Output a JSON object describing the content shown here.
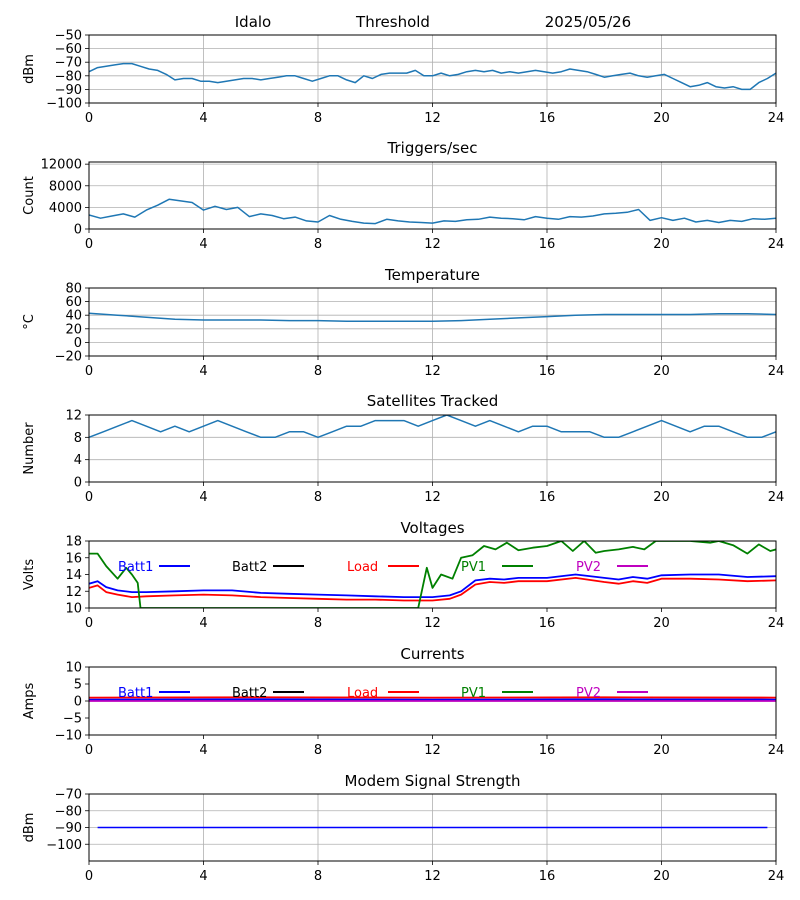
{
  "header": {
    "station": "Idalo",
    "mode": "Threshold",
    "date": "2025/05/26"
  },
  "colors": {
    "trace": "#1f77b4",
    "grid": "#b0b0b0",
    "batt1": "#0000ff",
    "batt2": "#000000",
    "load": "#ff0000",
    "pv1": "#008000",
    "pv2": "#bf00bf"
  },
  "legend_labels": [
    "Batt1",
    "Batt2",
    "Load",
    "PV1",
    "PV2"
  ],
  "x_ticks": [
    "0",
    "4",
    "8",
    "12",
    "16",
    "20",
    "24"
  ],
  "chart_data": [
    {
      "type": "line",
      "title": "",
      "ylabel": "dBm",
      "xlim": [
        0,
        24
      ],
      "ylim": [
        -100,
        -50
      ],
      "yticks": [
        -100,
        -90,
        -80,
        -70,
        -60,
        -50
      ],
      "grid": true,
      "series": [
        {
          "color": "#1f77b4",
          "x": [
            0,
            0.3,
            0.6,
            0.9,
            1.2,
            1.5,
            1.8,
            2.1,
            2.4,
            2.7,
            3,
            3.3,
            3.6,
            3.9,
            4.2,
            4.5,
            4.8,
            5.1,
            5.4,
            5.7,
            6,
            6.3,
            6.6,
            6.9,
            7.2,
            7.5,
            7.8,
            8.1,
            8.4,
            8.7,
            9,
            9.3,
            9.6,
            9.9,
            10.2,
            10.5,
            10.8,
            11.1,
            11.4,
            11.7,
            12,
            12.3,
            12.6,
            12.9,
            13.2,
            13.5,
            13.8,
            14.1,
            14.4,
            14.7,
            15,
            15.3,
            15.6,
            15.9,
            16.2,
            16.5,
            16.8,
            17.1,
            17.4,
            17.7,
            18,
            18.3,
            18.6,
            18.9,
            19.2,
            19.5,
            19.8,
            20.1,
            20.4,
            20.7,
            21,
            21.3,
            21.6,
            21.9,
            22.2,
            22.5,
            22.8,
            23.1,
            23.4,
            23.7,
            24
          ],
          "y": [
            -77,
            -74,
            -73,
            -72,
            -71,
            -71,
            -73,
            -75,
            -76,
            -79,
            -83,
            -82,
            -82,
            -84,
            -84,
            -85,
            -84,
            -83,
            -82,
            -82,
            -83,
            -82,
            -81,
            -80,
            -80,
            -82,
            -84,
            -82,
            -80,
            -80,
            -83,
            -85,
            -80,
            -82,
            -79,
            -78,
            -78,
            -78,
            -76,
            -80,
            -80,
            -78,
            -80,
            -79,
            -77,
            -76,
            -77,
            -76,
            -78,
            -77,
            -78,
            -77,
            -76,
            -77,
            -78,
            -77,
            -75,
            -76,
            -77,
            -79,
            -81,
            -80,
            -79,
            -78,
            -80,
            -81,
            -80,
            -79,
            -82,
            -85,
            -88,
            -87,
            -85,
            -88,
            -89,
            -88,
            -90,
            -90,
            -85,
            -82,
            -78
          ]
        }
      ]
    },
    {
      "type": "line",
      "title": "Triggers/sec",
      "ylabel": "Count",
      "xlim": [
        0,
        24
      ],
      "ylim": [
        0,
        12400
      ],
      "yticks": [
        0,
        4000,
        8000,
        12000
      ],
      "grid": true,
      "series": [
        {
          "color": "#1f77b4",
          "x": [
            0,
            0.4,
            0.8,
            1.2,
            1.6,
            2,
            2.4,
            2.8,
            3.2,
            3.6,
            4,
            4.4,
            4.8,
            5.2,
            5.6,
            6,
            6.4,
            6.8,
            7.2,
            7.6,
            8,
            8.4,
            8.8,
            9.2,
            9.6,
            10,
            10.4,
            10.8,
            11.2,
            11.6,
            12,
            12.4,
            12.8,
            13.2,
            13.6,
            14,
            14.4,
            14.8,
            15.2,
            15.6,
            16,
            16.4,
            16.8,
            17.2,
            17.6,
            18,
            18.4,
            18.8,
            19.2,
            19.6,
            20,
            20.4,
            20.8,
            21.2,
            21.6,
            22,
            22.4,
            22.8,
            23.2,
            23.6,
            24
          ],
          "y": [
            2600,
            2000,
            2400,
            2800,
            2200,
            3500,
            4400,
            5500,
            5200,
            4900,
            3500,
            4200,
            3600,
            4000,
            2300,
            2800,
            2500,
            1900,
            2200,
            1500,
            1300,
            2500,
            1800,
            1400,
            1100,
            1000,
            1800,
            1500,
            1300,
            1200,
            1100,
            1500,
            1400,
            1700,
            1800,
            2200,
            2000,
            1900,
            1700,
            2300,
            2000,
            1800,
            2300,
            2200,
            2400,
            2800,
            2900,
            3100,
            3600,
            1600,
            2100,
            1600,
            2000,
            1300,
            1600,
            1200,
            1600,
            1400,
            1900,
            1800,
            2000
          ]
        }
      ]
    },
    {
      "type": "line",
      "title": "Temperature",
      "ylabel": "°C",
      "xlim": [
        0,
        24
      ],
      "ylim": [
        -20,
        80
      ],
      "yticks": [
        -20,
        0,
        20,
        40,
        60,
        80
      ],
      "grid": true,
      "series": [
        {
          "color": "#1f77b4",
          "x": [
            0,
            1,
            2,
            3,
            4,
            5,
            6,
            7,
            8,
            9,
            10,
            11,
            12,
            13,
            14,
            15,
            16,
            17,
            18,
            19,
            20,
            21,
            22,
            23,
            24
          ],
          "y": [
            43,
            40,
            37,
            34,
            33,
            33,
            33,
            32,
            32,
            31,
            31,
            31,
            31,
            32,
            34,
            36,
            38,
            40,
            41,
            41,
            41,
            41,
            42,
            42,
            41
          ]
        }
      ]
    },
    {
      "type": "line",
      "title": "Satellites Tracked",
      "ylabel": "Number",
      "xlim": [
        0,
        24
      ],
      "ylim": [
        0,
        12
      ],
      "yticks": [
        0,
        4,
        8,
        12
      ],
      "grid": true,
      "series": [
        {
          "color": "#1f77b4",
          "x": [
            0,
            0.5,
            1,
            1.5,
            2,
            2.5,
            3,
            3.5,
            4,
            4.5,
            5,
            5.5,
            6,
            6.5,
            7,
            7.5,
            8,
            8.5,
            9,
            9.5,
            10,
            10.5,
            11,
            11.5,
            12,
            12.5,
            13,
            13.5,
            14,
            14.5,
            15,
            15.5,
            16,
            16.5,
            17,
            17.5,
            18,
            18.5,
            19,
            19.5,
            20,
            20.5,
            21,
            21.5,
            22,
            22.5,
            23,
            23.5,
            24
          ],
          "y": [
            8,
            9,
            10,
            11,
            10,
            9,
            10,
            9,
            10,
            11,
            10,
            9,
            8,
            8,
            9,
            9,
            8,
            9,
            10,
            10,
            11,
            11,
            11,
            10,
            11,
            12,
            11,
            10,
            11,
            10,
            9,
            10,
            10,
            9,
            9,
            9,
            8,
            8,
            9,
            10,
            11,
            10,
            9,
            10,
            10,
            9,
            8,
            8,
            9
          ]
        }
      ]
    },
    {
      "type": "line",
      "title": "Voltages",
      "ylabel": "Volts",
      "xlim": [
        0,
        24
      ],
      "ylim": [
        10,
        18
      ],
      "yticks": [
        10,
        12,
        14,
        16,
        18
      ],
      "grid": false,
      "legend": "top",
      "series": [
        {
          "name": "Batt1",
          "color": "#0000ff",
          "x": [
            0,
            0.3,
            0.6,
            1,
            1.5,
            2,
            3,
            4,
            5,
            6,
            7,
            8,
            9,
            10,
            11,
            12,
            12.6,
            13,
            13.5,
            14,
            14.5,
            15,
            16,
            17,
            18,
            18.5,
            19,
            19.5,
            20,
            21,
            22,
            23,
            24
          ],
          "y": [
            12.9,
            13.2,
            12.5,
            12.1,
            11.9,
            11.9,
            12,
            12.1,
            12.1,
            11.8,
            11.7,
            11.6,
            11.5,
            11.4,
            11.3,
            11.3,
            11.5,
            12,
            13.3,
            13.5,
            13.4,
            13.6,
            13.6,
            14,
            13.6,
            13.4,
            13.7,
            13.5,
            13.9,
            14,
            14,
            13.7,
            13.8
          ]
        },
        {
          "name": "Load",
          "color": "#ff0000",
          "x": [
            0,
            0.3,
            0.6,
            1,
            1.5,
            2,
            3,
            4,
            5,
            6,
            7,
            8,
            9,
            10,
            11,
            12,
            12.6,
            13,
            13.5,
            14,
            14.5,
            15,
            16,
            17,
            18,
            18.5,
            19,
            19.5,
            20,
            21,
            22,
            23,
            24
          ],
          "y": [
            12.4,
            12.7,
            11.9,
            11.6,
            11.3,
            11.4,
            11.5,
            11.6,
            11.5,
            11.3,
            11.2,
            11.1,
            11,
            11,
            10.9,
            10.9,
            11.1,
            11.6,
            12.8,
            13.1,
            13,
            13.2,
            13.2,
            13.6,
            13.1,
            12.9,
            13.2,
            13,
            13.5,
            13.5,
            13.4,
            13.2,
            13.3
          ]
        },
        {
          "name": "PV1",
          "color": "#008000",
          "x": [
            0,
            0.3,
            0.6,
            1,
            1.3,
            1.5,
            1.7,
            1.8,
            11.5,
            11.8,
            12,
            12.3,
            12.7,
            13,
            13.4,
            13.8,
            14.2,
            14.6,
            15,
            15.5,
            16,
            16.5,
            16.9,
            17.3,
            17.7,
            18,
            18.5,
            19,
            19.4,
            19.8,
            20,
            21,
            21.7,
            22,
            22.5,
            23,
            23.4,
            23.8,
            24
          ],
          "y": [
            16.5,
            16.5,
            15,
            13.5,
            14.8,
            14,
            13,
            10,
            10,
            14.8,
            12.4,
            14,
            13.5,
            16,
            16.3,
            17.4,
            17,
            17.8,
            16.9,
            17.2,
            17.4,
            18,
            16.8,
            18,
            16.6,
            16.8,
            17,
            17.3,
            17,
            18,
            18,
            18,
            17.8,
            18,
            17.5,
            16.5,
            17.6,
            16.8,
            17
          ]
        },
        {
          "name": "Batt2",
          "color": "#000000",
          "x": [],
          "y": []
        },
        {
          "name": "PV2",
          "color": "#bf00bf",
          "x": [],
          "y": []
        }
      ]
    },
    {
      "type": "line",
      "title": "Currents",
      "ylabel": "Amps",
      "xlim": [
        0,
        24
      ],
      "ylim": [
        -10,
        10
      ],
      "yticks": [
        -10,
        -5,
        0,
        5,
        10
      ],
      "grid": false,
      "legend": "top",
      "series": [
        {
          "name": "Load",
          "color": "#ff0000",
          "x": [
            0,
            6,
            12,
            18,
            24
          ],
          "y": [
            1,
            1.1,
            1,
            1.1,
            1
          ]
        },
        {
          "name": "PV1",
          "color": "#008000",
          "x": [
            0,
            24
          ],
          "y": [
            0.3,
            0.3
          ]
        },
        {
          "name": "Batt1",
          "color": "#0000ff",
          "x": [
            0,
            6,
            12,
            18,
            24
          ],
          "y": [
            0.4,
            0.5,
            0.4,
            0.5,
            0.4
          ]
        },
        {
          "name": "PV2",
          "color": "#bf00bf",
          "x": [
            0,
            24
          ],
          "y": [
            0,
            0
          ]
        },
        {
          "name": "Batt2",
          "color": "#000000",
          "x": [],
          "y": []
        }
      ]
    },
    {
      "type": "line",
      "title": "Modem Signal Strength",
      "ylabel": "dBm",
      "xlim": [
        0,
        24
      ],
      "ylim": [
        -110,
        -70
      ],
      "yticks": [
        -100,
        -90,
        -80,
        -70
      ],
      "grid": true,
      "series": [
        {
          "color": "#0000ff",
          "x": [
            0.3,
            23.7
          ],
          "y": [
            -90,
            -90
          ]
        }
      ]
    }
  ]
}
